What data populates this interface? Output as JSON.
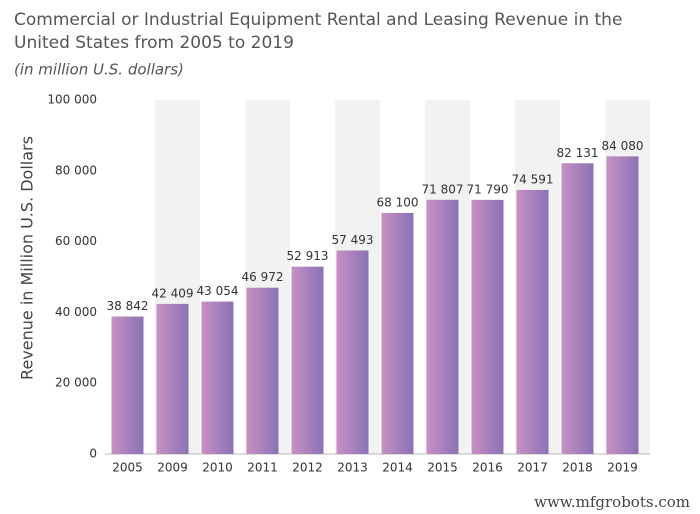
{
  "chart_data": {
    "type": "bar",
    "title_lines": [
      "Commercial or Industrial Equipment Rental and Leasing Revenue in the",
      "United States from 2005 to 2019"
    ],
    "subtitle": "(in million U.S. dollars)",
    "y_label": "Revenue in Million U.S. Dollars",
    "categories": [
      "2005",
      "2009",
      "2010",
      "2011",
      "2012",
      "2013",
      "2014",
      "2015",
      "2016",
      "2017",
      "2018",
      "2019"
    ],
    "values": [
      38842,
      42409,
      43054,
      46972,
      52913,
      57493,
      68100,
      71807,
      71790,
      74591,
      82131,
      84080
    ],
    "value_labels": [
      "38 842",
      "42 409",
      "43 054",
      "46 972",
      "52 913",
      "57 493",
      "68 100",
      "71 807",
      "71 790",
      "74 591",
      "82 131",
      "84 080"
    ],
    "gradient": [
      "#c890c3",
      "#8a72b5"
    ],
    "band_shade": "#f2f2f2",
    "ylim": [
      0,
      100000
    ],
    "yticks": [
      {
        "value": 0,
        "label": "0"
      },
      {
        "value": 20000,
        "label": "20 000"
      },
      {
        "value": 40000,
        "label": "40 000"
      },
      {
        "value": 60000,
        "label": "60 000"
      },
      {
        "value": 80000,
        "label": "80 000"
      },
      {
        "value": 100000,
        "label": "100 000"
      }
    ],
    "grid": false,
    "watermark": "www.mfgrobots.com"
  }
}
